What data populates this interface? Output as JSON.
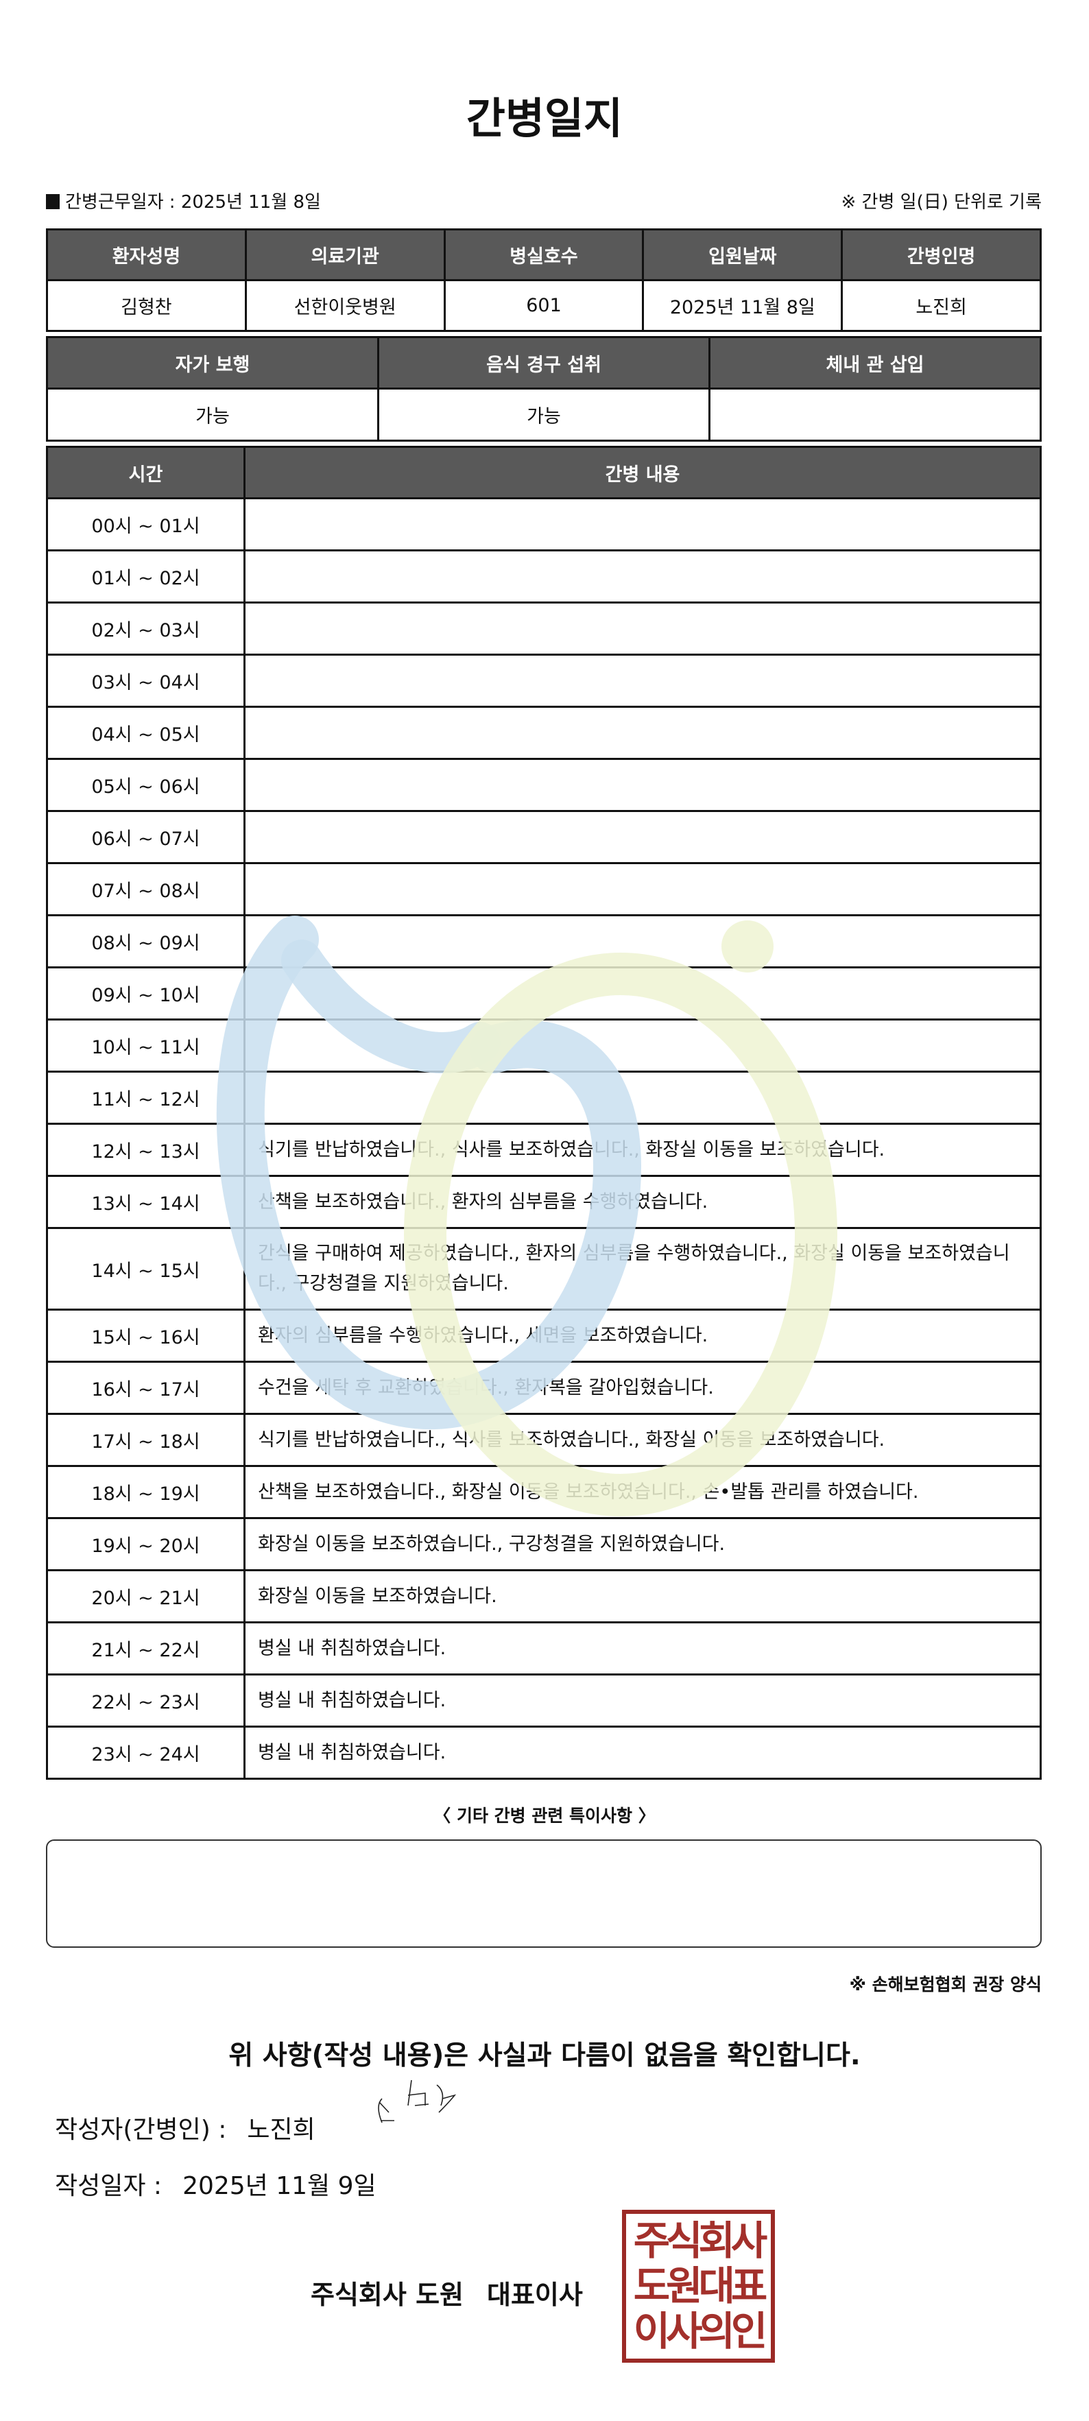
{
  "title": "간병일지",
  "work_date": {
    "label": "간병근무일자",
    "value": "2025년 11월 8일"
  },
  "unit_note": "※ 간병 일(日) 단위로 기록",
  "patient_table": {
    "headers": [
      "환자성명",
      "의료기관",
      "병실호수",
      "입원날짜",
      "간병인명"
    ],
    "values": [
      "김형찬",
      "선한이웃병원",
      "601",
      "2025년 11월 8일",
      "노진희"
    ]
  },
  "status_table": {
    "headers": [
      "자가 보행",
      "음식 경구 섭취",
      "체내 관 삽입"
    ],
    "values": [
      "가능",
      "가능",
      ""
    ]
  },
  "log_table": {
    "headers": [
      "시간",
      "간병 내용"
    ],
    "rows": [
      {
        "time": "00시 ~ 01시",
        "content": ""
      },
      {
        "time": "01시 ~ 02시",
        "content": ""
      },
      {
        "time": "02시 ~ 03시",
        "content": ""
      },
      {
        "time": "03시 ~ 04시",
        "content": ""
      },
      {
        "time": "04시 ~ 05시",
        "content": ""
      },
      {
        "time": "05시 ~ 06시",
        "content": ""
      },
      {
        "time": "06시 ~ 07시",
        "content": ""
      },
      {
        "time": "07시 ~ 08시",
        "content": ""
      },
      {
        "time": "08시 ~ 09시",
        "content": ""
      },
      {
        "time": "09시 ~ 10시",
        "content": ""
      },
      {
        "time": "10시 ~ 11시",
        "content": ""
      },
      {
        "time": "11시 ~ 12시",
        "content": ""
      },
      {
        "time": "12시 ~ 13시",
        "content": "식기를 반납하였습니다., 식사를 보조하였습니다., 화장실 이동을 보조하였습니다."
      },
      {
        "time": "13시 ~ 14시",
        "content": "산책을 보조하였습니다., 환자의 심부름을 수행하였습니다."
      },
      {
        "time": "14시 ~ 15시",
        "content": "간식을 구매하여 제공하였습니다., 환자의 심부름을 수행하였습니다., 화장실 이동을 보조하였습니다., 구강청결을 지원하였습니다."
      },
      {
        "time": "15시 ~ 16시",
        "content": "환자의 심부름을 수행하였습니다., 세면을 보조하였습니다."
      },
      {
        "time": "16시 ~ 17시",
        "content": "수건을 세탁 후 교환하였습니다., 환자복을 갈아입혔습니다."
      },
      {
        "time": "17시 ~ 18시",
        "content": "식기를 반납하였습니다., 식사를 보조하였습니다., 화장실 이동을 보조하였습니다."
      },
      {
        "time": "18시 ~ 19시",
        "content": "산책을 보조하였습니다., 화장실 이동을 보조하였습니다., 손•발톱 관리를 하였습니다."
      },
      {
        "time": "19시 ~ 20시",
        "content": "화장실 이동을 보조하였습니다., 구강청결을 지원하였습니다."
      },
      {
        "time": "20시 ~ 21시",
        "content": "화장실 이동을 보조하였습니다."
      },
      {
        "time": "21시 ~ 22시",
        "content": "병실 내 취침하였습니다."
      },
      {
        "time": "22시 ~ 23시",
        "content": "병실 내 취침하였습니다."
      },
      {
        "time": "23시 ~ 24시",
        "content": "병실 내 취침하였습니다."
      }
    ]
  },
  "other_notes": {
    "title": "〈 기타 간병 관련 특이사항 〉",
    "value": ""
  },
  "association_note": "※ 손해보험협회 권장 양식",
  "confirmation": "위 사항(작성 내용)은 사실과 다름이 없음을 확인합니다.",
  "writer": {
    "label": "작성자(간병인) :",
    "value": "노진희"
  },
  "written_date": {
    "label": "작성일자 :",
    "value": "2025년 11월 9일"
  },
  "company": {
    "name": "주식회사 도원",
    "title": "대표이사"
  },
  "seal": {
    "text": "주식회사도원대표이사의인",
    "color": "#9b2a26"
  },
  "colors": {
    "header_bg": "#595959",
    "watermark_blue": "#c9dff0",
    "watermark_green": "#eef3d2"
  }
}
